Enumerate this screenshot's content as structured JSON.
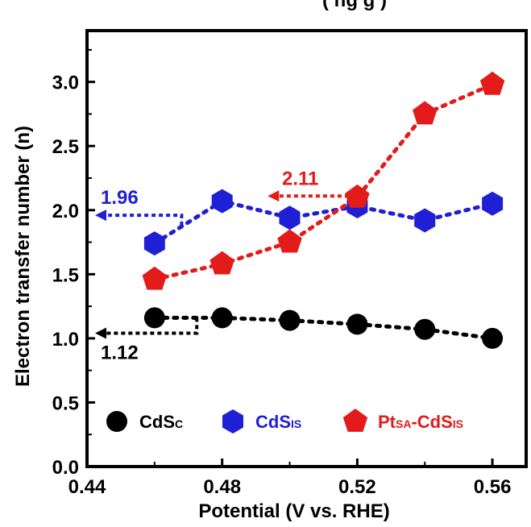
{
  "chart_data": {
    "type": "scatter",
    "title_partial": "(   ng  g  )",
    "xlabel": "Potential (V vs. RHE)",
    "ylabel": "Electron transfer number (n)",
    "xlim": [
      0.44,
      0.57
    ],
    "ylim": [
      0.0,
      3.4
    ],
    "xticks": [
      "0.44",
      "0.48",
      "0.52",
      "0.56"
    ],
    "yticks": [
      "0.0",
      "0.5",
      "1.0",
      "1.5",
      "2.0",
      "2.5",
      "3.0"
    ],
    "series": [
      {
        "name": "CdS",
        "name_sub": "C",
        "marker": "circle",
        "color": "#000000",
        "x": [
          0.46,
          0.48,
          0.5,
          0.52,
          0.54,
          0.56
        ],
        "y": [
          1.16,
          1.16,
          1.14,
          1.11,
          1.07,
          1.0
        ]
      },
      {
        "name": "CdS",
        "name_sub": "IS",
        "marker": "hexagon",
        "color": "#1f1fd6",
        "x": [
          0.46,
          0.48,
          0.5,
          0.52,
          0.54,
          0.56
        ],
        "y": [
          1.74,
          2.07,
          1.94,
          2.03,
          1.92,
          2.05
        ]
      },
      {
        "name": "Pt",
        "name_sub": "SA",
        "name_mid": "-CdS",
        "name_sub2": "IS",
        "marker": "pentagon",
        "color": "#e31b1b",
        "x": [
          0.46,
          0.48,
          0.5,
          0.52,
          0.54,
          0.56
        ],
        "y": [
          1.46,
          1.58,
          1.75,
          2.1,
          2.75,
          2.98
        ]
      }
    ],
    "annotations": [
      {
        "text": "1.96",
        "color": "#1f1fd6"
      },
      {
        "text": "2.11",
        "color": "#e31b1b"
      },
      {
        "text": "1.12",
        "color": "#000000"
      }
    ],
    "legend_placement": "bottom",
    "grid": false
  }
}
